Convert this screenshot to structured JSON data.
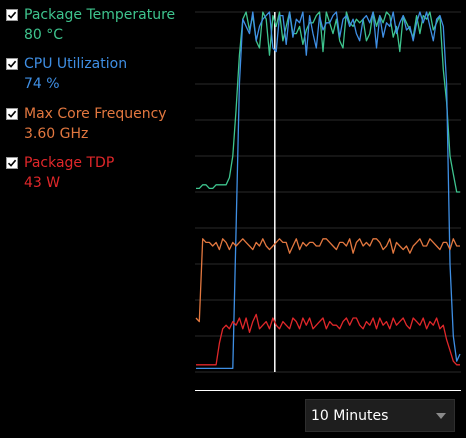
{
  "legend": [
    {
      "label": "Package Temperature",
      "value": "80 °C",
      "color": "#3ec48e",
      "checked": true
    },
    {
      "label": "CPU Utilization",
      "value": "74 %",
      "color": "#3f8fe4",
      "checked": true
    },
    {
      "label": "Max Core Frequency",
      "value": "3.60 GHz",
      "color": "#e2773f",
      "checked": true
    },
    {
      "label": "Package TDP",
      "value": "43 W",
      "color": "#e0272a",
      "checked": true
    }
  ],
  "time_range": {
    "selected": "10 Minutes",
    "icon": "chevron-down-icon"
  },
  "chart_data": {
    "type": "line",
    "grid": true,
    "cursor_fraction": 0.3,
    "series": [
      {
        "color": "#3ec48e",
        "values": [
          51,
          51,
          52,
          52,
          51,
          51,
          52,
          52,
          52,
          52,
          54,
          60,
          73,
          88,
          98,
          100,
          95,
          99,
          92,
          90,
          100,
          98,
          88,
          99,
          96,
          100,
          92,
          96,
          100,
          94,
          94,
          96,
          91,
          95,
          97,
          97,
          99,
          100,
          89,
          100,
          97,
          94,
          98,
          92,
          90,
          100,
          97,
          96,
          98,
          97,
          98,
          92,
          94,
          100,
          96,
          99,
          97,
          100,
          99,
          93,
          96,
          89,
          99,
          97,
          95,
          93,
          99,
          94,
          99,
          98,
          100,
          95,
          97,
          99,
          84,
          75,
          60,
          55,
          50,
          50
        ]
      },
      {
        "color": "#3f8fe4",
        "values": [
          1,
          1,
          1,
          1,
          1,
          1,
          1,
          1,
          1,
          1,
          1,
          1,
          40,
          80,
          98,
          96,
          94,
          100,
          92,
          96,
          98,
          99,
          100,
          90,
          89,
          99,
          99,
          91,
          100,
          93,
          98,
          97,
          100,
          88,
          99,
          94,
          90,
          99,
          95,
          97,
          97,
          99,
          100,
          93,
          98,
          99,
          96,
          98,
          94,
          92,
          98,
          99,
          97,
          100,
          90,
          99,
          93,
          97,
          96,
          100,
          94,
          97,
          99,
          95,
          96,
          92,
          97,
          100,
          97,
          100,
          96,
          92,
          98,
          99,
          96,
          80,
          30,
          10,
          3,
          5
        ]
      },
      {
        "color": "#e2773f",
        "values": [
          15,
          14,
          37,
          36,
          36,
          35,
          36,
          34,
          37,
          36,
          34,
          36,
          35,
          36,
          37,
          36,
          35,
          34,
          36,
          35,
          37,
          35,
          34,
          35,
          36,
          37,
          36,
          36,
          33,
          35,
          37,
          34,
          36,
          35,
          36,
          36,
          35,
          35,
          37,
          37,
          36,
          35,
          34,
          36,
          36,
          35,
          37,
          33,
          36,
          37,
          35,
          36,
          35,
          37,
          37,
          36,
          34,
          35,
          37,
          33,
          36,
          35,
          34,
          35,
          33,
          35,
          36,
          37,
          35,
          35,
          37,
          36,
          35,
          34,
          36,
          36,
          34,
          37,
          35,
          35
        ]
      },
      {
        "color": "#e0272a",
        "values": [
          2,
          2,
          2,
          2,
          2,
          2,
          2,
          8,
          12,
          13,
          12,
          14,
          13,
          15,
          12,
          15,
          11,
          14,
          16,
          12,
          13,
          14,
          12,
          15,
          13,
          12,
          14,
          13,
          12,
          15,
          14,
          12,
          15,
          13,
          15,
          12,
          13,
          14,
          15,
          12,
          14,
          13,
          13,
          12,
          14,
          15,
          13,
          15,
          15,
          13,
          12,
          14,
          13,
          15,
          12,
          15,
          13,
          14,
          12,
          15,
          13,
          14,
          15,
          13,
          12,
          15,
          14,
          13,
          15,
          12,
          14,
          13,
          15,
          12,
          13,
          9,
          6,
          3,
          2,
          2
        ]
      }
    ]
  }
}
